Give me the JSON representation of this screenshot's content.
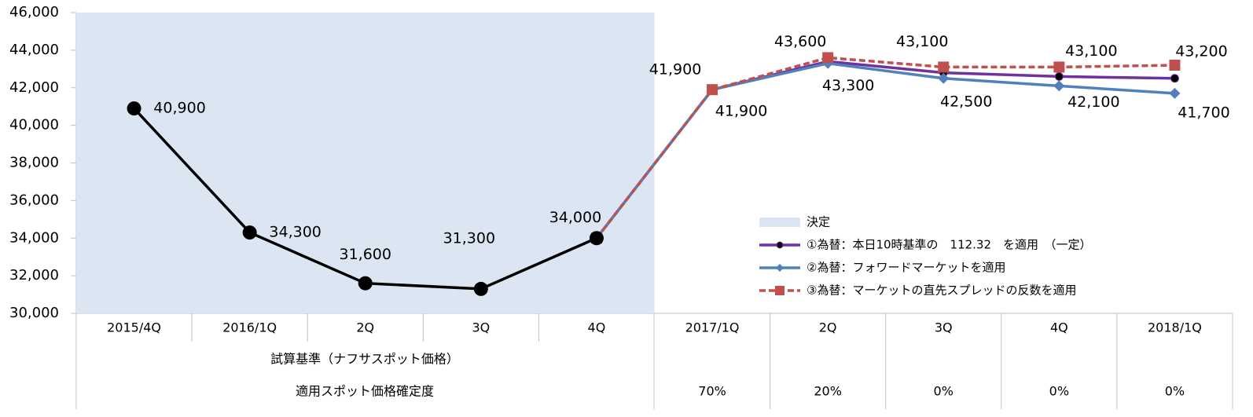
{
  "chart_data": {
    "type": "line",
    "categories": [
      "2015/4Q",
      "2016/1Q",
      "2Q",
      "3Q",
      "4Q",
      "2017/1Q",
      "2Q",
      "3Q",
      "4Q",
      "2018/1Q"
    ],
    "ylim": [
      30000,
      46000
    ],
    "yticks": [
      {
        "value": 30000,
        "label": "30,000"
      },
      {
        "value": 32000,
        "label": "32,000"
      },
      {
        "value": 34000,
        "label": "34,000"
      },
      {
        "value": 36000,
        "label": "36,000"
      },
      {
        "value": 38000,
        "label": "38,000"
      },
      {
        "value": 40000,
        "label": "40,000"
      },
      {
        "value": 42000,
        "label": "42,000"
      },
      {
        "value": 44000,
        "label": "44,000"
      },
      {
        "value": 46000,
        "label": "46,000"
      }
    ],
    "shade": {
      "label": "決定",
      "color": "#dce6f2",
      "last_index": 4
    },
    "series": [
      {
        "name": "①為替：本日10時基準の　112.32　を適用　（一定）",
        "color": "#7030a0",
        "marker": "dot",
        "values": [
          null,
          null,
          null,
          null,
          34000,
          41900,
          43400,
          42800,
          42600,
          42500
        ]
      },
      {
        "name": "②為替：フォワードマーケットを適用",
        "color": "#4f81bd",
        "marker": "diamond",
        "values": [
          null,
          null,
          null,
          null,
          34000,
          41900,
          43300,
          42500,
          42100,
          41700
        ],
        "value_labels": [
          null,
          null,
          null,
          null,
          null,
          "41,900",
          "43,300",
          "42,500",
          "42,100",
          "41,700"
        ]
      },
      {
        "name": "③為替：マーケットの直先スプレッドの反数を適用",
        "color": "#c0504d",
        "marker": "square",
        "dashed": true,
        "values": [
          null,
          null,
          null,
          null,
          34000,
          41900,
          43600,
          43100,
          43100,
          43200
        ],
        "value_labels": [
          null,
          null,
          null,
          null,
          null,
          "41,900",
          "43,600",
          "43,100",
          "43,100",
          "43,200"
        ]
      },
      {
        "color": "#000000",
        "marker": "circle",
        "values": [
          40900,
          34300,
          31600,
          31300,
          34000,
          null,
          null,
          null,
          null,
          null
        ],
        "value_labels": [
          "40,900",
          "34,300",
          "31,600",
          "31,300",
          "34,000",
          null,
          null,
          null,
          null,
          null
        ]
      }
    ],
    "table": {
      "basis_label": "試算基準（ナフサスポット価格）",
      "certainty_label": "適用スポット価格確定度",
      "certainty": [
        null,
        null,
        null,
        null,
        null,
        "70%",
        "20%",
        "0%",
        "0%",
        "0%"
      ]
    }
  }
}
